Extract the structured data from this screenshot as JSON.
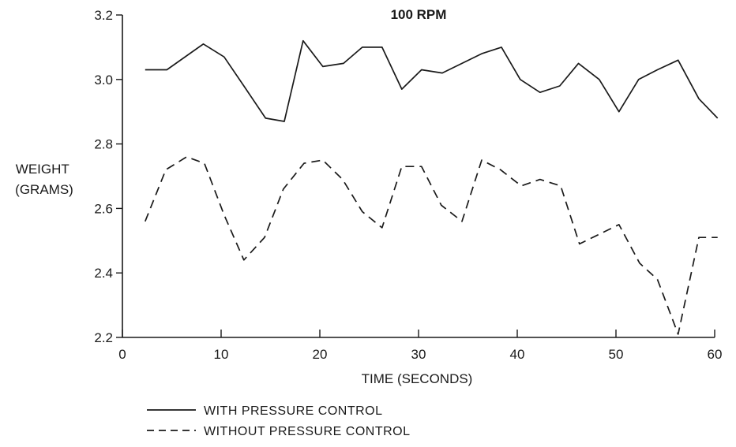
{
  "chart_data": {
    "type": "line",
    "title": "100 RPM",
    "xlabel": "TIME (SECONDS)",
    "ylabel": [
      "WEIGHT",
      "(GRAMS)"
    ],
    "xlim": [
      0,
      60
    ],
    "ylim": [
      2.2,
      3.2
    ],
    "xticks": [
      0,
      10,
      20,
      30,
      40,
      50,
      60
    ],
    "xtick_labels": [
      "0",
      "10",
      "20",
      "30",
      "40",
      "50",
      "60"
    ],
    "yticks": [
      2.2,
      2.4,
      2.6,
      2.8,
      3.0,
      3.2
    ],
    "ytick_labels": [
      "2.2",
      "2.4",
      "2.6",
      "2.8",
      "3.0",
      "3.2"
    ],
    "grid": false,
    "legend_position": "bottom",
    "series": [
      {
        "name": "WITH PRESSURE CONTROL",
        "style": "solid",
        "color": "#1a1a1a",
        "x": [
          2.3,
          4.5,
          8.2,
          10.3,
          12.3,
          14.5,
          16.4,
          18.3,
          20.3,
          22.4,
          24.3,
          26.3,
          28.3,
          30.3,
          32.4,
          34.4,
          36.4,
          38.4,
          40.3,
          42.3,
          44.3,
          46.2,
          48.3,
          50.3,
          52.3,
          54.2,
          56.3,
          58.4,
          60.3
        ],
        "values": [
          3.03,
          3.03,
          3.11,
          3.07,
          2.98,
          2.88,
          2.87,
          3.12,
          3.04,
          3.05,
          3.1,
          3.1,
          2.97,
          3.03,
          3.02,
          3.05,
          3.08,
          3.1,
          3.0,
          2.96,
          2.98,
          3.05,
          3.0,
          2.9,
          3.0,
          3.03,
          3.06,
          2.94,
          2.88
        ]
      },
      {
        "name": "WITHOUT PRESSURE CONTROL",
        "style": "dashed",
        "color": "#1a1a1a",
        "x": [
          2.3,
          4.4,
          6.5,
          8.3,
          10.3,
          12.3,
          14.4,
          16.3,
          18.4,
          20.3,
          22.3,
          24.3,
          26.3,
          28.3,
          30.3,
          32.3,
          34.4,
          36.4,
          38.3,
          40.4,
          42.3,
          44.4,
          46.3,
          50.3,
          52.4,
          54.2,
          56.3,
          58.4,
          60.3
        ],
        "values": [
          2.56,
          2.72,
          2.76,
          2.74,
          2.58,
          2.44,
          2.51,
          2.66,
          2.74,
          2.75,
          2.69,
          2.59,
          2.54,
          2.73,
          2.73,
          2.61,
          2.56,
          2.75,
          2.72,
          2.67,
          2.69,
          2.67,
          2.49,
          2.55,
          2.43,
          2.38,
          2.21,
          2.51,
          2.51
        ]
      }
    ]
  }
}
